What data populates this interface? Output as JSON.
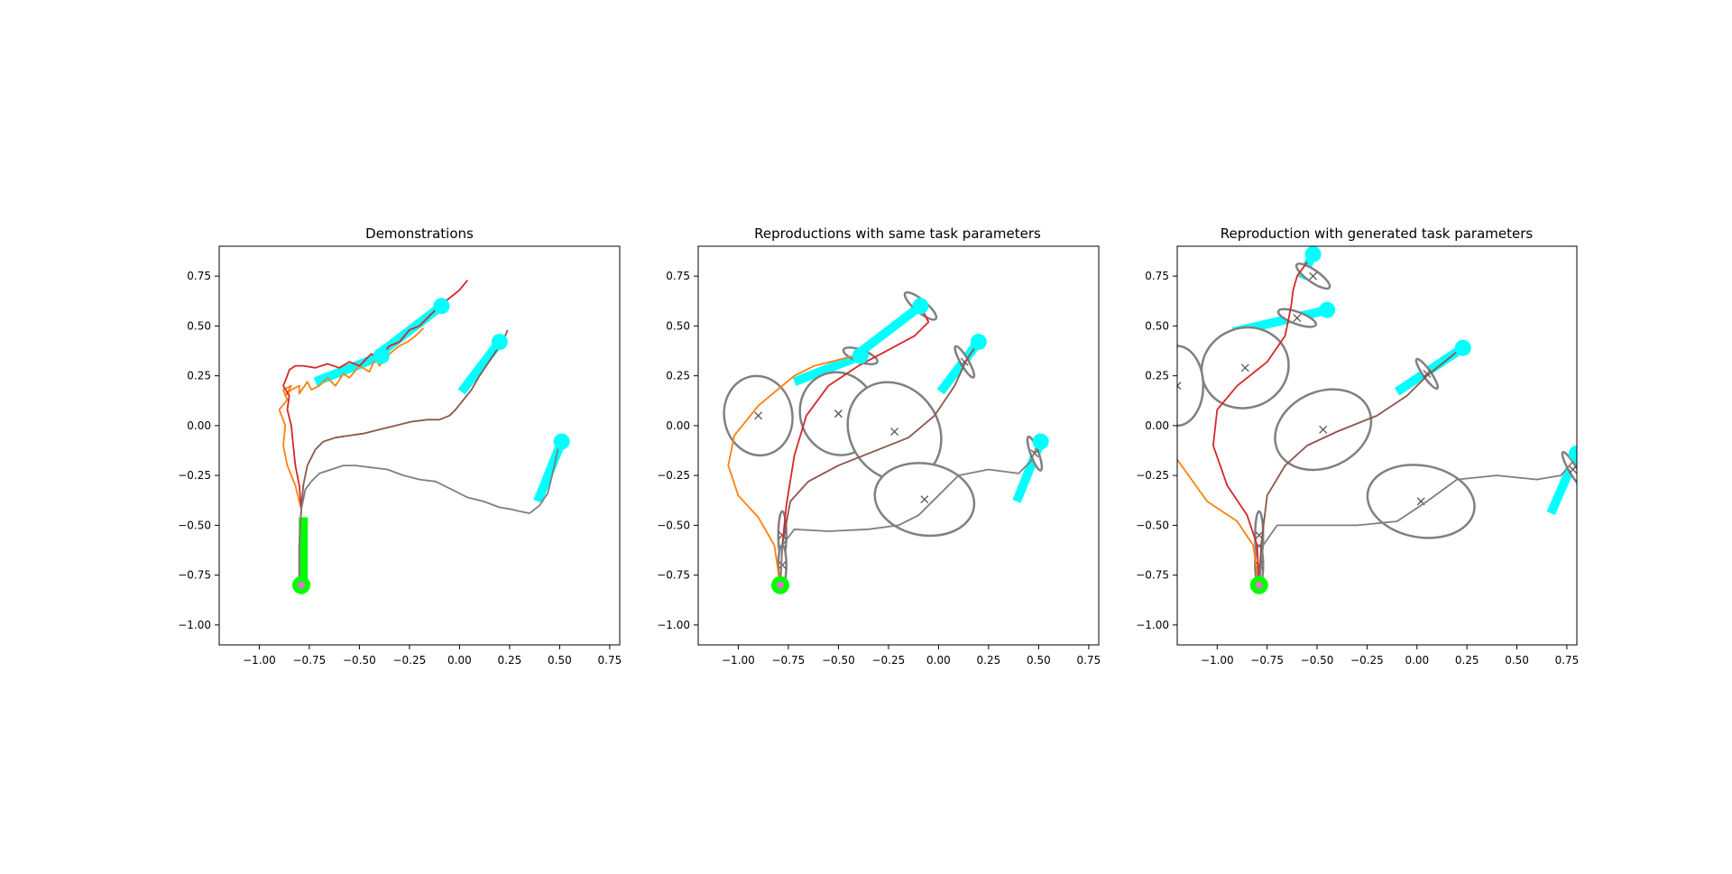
{
  "chart_data": [
    {
      "type": "line",
      "title": "Demonstrations",
      "xlabel": "",
      "ylabel": "",
      "xlim": [
        -1.2,
        0.8
      ],
      "ylim": [
        -1.1,
        0.9
      ],
      "x_ticks": [
        "−1.00",
        "−0.75",
        "−0.50",
        "−0.25",
        "0.00",
        "0.25",
        "0.50",
        "0.75"
      ],
      "y_ticks": [
        "−1.00",
        "−0.75",
        "−0.50",
        "−0.25",
        "0.00",
        "0.25",
        "0.50",
        "0.75"
      ],
      "start": {
        "x": -0.79,
        "y": -0.8,
        "color": "#00ff00"
      },
      "start_bar": {
        "x": -0.78,
        "y_from": -0.78,
        "y_to": -0.46,
        "color": "#00ff00"
      },
      "targets": [
        {
          "x": -0.39,
          "y": 0.35,
          "angle_x": -0.72,
          "angle_y": 0.22
        },
        {
          "x": -0.09,
          "y": 0.6,
          "angle_x": -0.39,
          "angle_y": 0.37
        },
        {
          "x": 0.2,
          "y": 0.42,
          "angle_x": 0.01,
          "angle_y": 0.17
        },
        {
          "x": 0.51,
          "y": -0.08,
          "angle_x": 0.39,
          "angle_y": -0.38
        }
      ],
      "series": [
        {
          "color": "#ff7f0e",
          "x": [
            -0.8,
            -0.8,
            -0.79,
            -0.82,
            -0.86,
            -0.88,
            -0.87,
            -0.9,
            -0.86,
            -0.88,
            -0.84,
            -0.87,
            -0.84,
            -0.8,
            -0.8,
            -0.76,
            -0.74,
            -0.7,
            -0.66,
            -0.62,
            -0.58,
            -0.55,
            -0.5,
            -0.45,
            -0.42,
            -0.4,
            -0.35,
            -0.3,
            -0.26,
            -0.22,
            -0.18
          ],
          "y": [
            -0.78,
            -0.6,
            -0.42,
            -0.3,
            -0.2,
            -0.1,
            0.0,
            0.08,
            0.13,
            0.18,
            0.2,
            0.15,
            0.18,
            0.2,
            0.16,
            0.22,
            0.18,
            0.2,
            0.24,
            0.2,
            0.26,
            0.24,
            0.3,
            0.27,
            0.34,
            0.3,
            0.36,
            0.4,
            0.42,
            0.45,
            0.49
          ]
        },
        {
          "color": "#d62728",
          "x": [
            -0.8,
            -0.8,
            -0.79,
            -0.8,
            -0.82,
            -0.83,
            -0.84,
            -0.86,
            -0.85,
            -0.88,
            -0.86,
            -0.85,
            -0.82,
            -0.78,
            -0.72,
            -0.66,
            -0.6,
            -0.55,
            -0.5,
            -0.44,
            -0.4,
            -0.35,
            -0.3,
            -0.25,
            -0.2,
            -0.15,
            -0.1,
            -0.05,
            0.0,
            0.04
          ],
          "y": [
            -0.78,
            -0.6,
            -0.42,
            -0.3,
            -0.2,
            -0.1,
            0.0,
            0.08,
            0.15,
            0.2,
            0.25,
            0.28,
            0.3,
            0.3,
            0.29,
            0.31,
            0.29,
            0.32,
            0.3,
            0.36,
            0.34,
            0.4,
            0.42,
            0.48,
            0.5,
            0.55,
            0.6,
            0.64,
            0.68,
            0.73
          ]
        },
        {
          "color": "#8c564b",
          "x": [
            -0.8,
            -0.8,
            -0.79,
            -0.78,
            -0.76,
            -0.72,
            -0.68,
            -0.62,
            -0.55,
            -0.48,
            -0.4,
            -0.32,
            -0.24,
            -0.16,
            -0.1,
            -0.05,
            -0.02,
            0.02,
            0.06,
            0.1,
            0.14,
            0.18,
            0.22,
            0.24
          ],
          "y": [
            -0.78,
            -0.6,
            -0.42,
            -0.3,
            -0.2,
            -0.12,
            -0.08,
            -0.06,
            -0.05,
            -0.04,
            -0.02,
            0.0,
            0.02,
            0.03,
            0.03,
            0.05,
            0.08,
            0.13,
            0.18,
            0.25,
            0.31,
            0.37,
            0.43,
            0.48
          ]
        },
        {
          "color": "#7f7f7f",
          "x": [
            -0.8,
            -0.8,
            -0.79,
            -0.77,
            -0.74,
            -0.7,
            -0.64,
            -0.58,
            -0.52,
            -0.44,
            -0.36,
            -0.28,
            -0.2,
            -0.12,
            -0.04,
            0.04,
            0.12,
            0.2,
            0.26,
            0.3,
            0.35,
            0.4,
            0.44,
            0.46,
            0.48,
            0.5
          ],
          "y": [
            -0.78,
            -0.6,
            -0.42,
            -0.32,
            -0.28,
            -0.24,
            -0.22,
            -0.2,
            -0.2,
            -0.21,
            -0.22,
            -0.25,
            -0.27,
            -0.28,
            -0.32,
            -0.36,
            -0.38,
            -0.41,
            -0.42,
            -0.43,
            -0.44,
            -0.4,
            -0.34,
            -0.26,
            -0.17,
            -0.08
          ]
        }
      ]
    },
    {
      "type": "line",
      "title": "Reproductions with same task parameters",
      "xlabel": "",
      "ylabel": "",
      "xlim": [
        -1.2,
        0.8
      ],
      "ylim": [
        -1.1,
        0.9
      ],
      "x_ticks": [
        "−1.00",
        "−0.75",
        "−0.50",
        "−0.25",
        "0.00",
        "0.25",
        "0.50",
        "0.75"
      ],
      "y_ticks": [
        "−1.00",
        "−0.75",
        "−0.50",
        "−0.25",
        "0.00",
        "0.25",
        "0.50",
        "0.75"
      ],
      "start": {
        "x": -0.79,
        "y": -0.8,
        "color": "#00ff00"
      },
      "targets": [
        {
          "x": -0.39,
          "y": 0.35,
          "angle_x": -0.72,
          "angle_y": 0.22
        },
        {
          "x": -0.09,
          "y": 0.6,
          "angle_x": -0.39,
          "angle_y": 0.37
        },
        {
          "x": 0.2,
          "y": 0.42,
          "angle_x": 0.01,
          "angle_y": 0.17
        },
        {
          "x": 0.51,
          "y": -0.08,
          "angle_x": 0.39,
          "angle_y": -0.38
        }
      ],
      "series": [
        {
          "color": "#ff7f0e",
          "x": [
            -0.79,
            -0.82,
            -0.9,
            -1.0,
            -1.05,
            -1.02,
            -0.9,
            -0.78,
            -0.72,
            -0.62,
            -0.5,
            -0.42,
            -0.39
          ],
          "y": [
            -0.8,
            -0.6,
            -0.46,
            -0.35,
            -0.2,
            -0.05,
            0.1,
            0.2,
            0.25,
            0.3,
            0.33,
            0.35,
            0.35
          ]
        },
        {
          "color": "#d62728",
          "x": [
            -0.79,
            -0.78,
            -0.76,
            -0.72,
            -0.66,
            -0.55,
            -0.4,
            -0.25,
            -0.12,
            -0.05,
            -0.09
          ],
          "y": [
            -0.8,
            -0.6,
            -0.4,
            -0.15,
            0.05,
            0.2,
            0.3,
            0.38,
            0.45,
            0.52,
            0.6
          ]
        },
        {
          "color": "#8c564b",
          "x": [
            -0.79,
            -0.78,
            -0.74,
            -0.65,
            -0.5,
            -0.3,
            -0.15,
            -0.02,
            0.08,
            0.14,
            0.2
          ],
          "y": [
            -0.8,
            -0.6,
            -0.38,
            -0.28,
            -0.2,
            -0.12,
            -0.06,
            0.05,
            0.2,
            0.33,
            0.42
          ]
        },
        {
          "color": "#7f7f7f",
          "x": [
            -0.79,
            -0.78,
            -0.72,
            -0.55,
            -0.35,
            -0.2,
            -0.1,
            0.0,
            0.1,
            0.25,
            0.4,
            0.46,
            0.5
          ],
          "y": [
            -0.8,
            -0.6,
            -0.52,
            -0.53,
            -0.52,
            -0.5,
            -0.45,
            -0.35,
            -0.25,
            -0.22,
            -0.24,
            -0.18,
            -0.08
          ]
        }
      ],
      "gaussians": [
        {
          "cx": -0.9,
          "cy": 0.05,
          "rx": 0.17,
          "ry": 0.2,
          "angle": 10
        },
        {
          "cx": -0.5,
          "cy": 0.06,
          "rx": 0.19,
          "ry": 0.21,
          "angle": 20
        },
        {
          "cx": -0.22,
          "cy": -0.03,
          "rx": 0.22,
          "ry": 0.26,
          "angle": 35
        },
        {
          "cx": -0.07,
          "cy": -0.37,
          "rx": 0.25,
          "ry": 0.18,
          "angle": -10
        },
        {
          "cx": -0.78,
          "cy": -0.55,
          "rx": 0.02,
          "ry": 0.12,
          "angle": 0
        },
        {
          "cx": -0.78,
          "cy": -0.7,
          "rx": 0.02,
          "ry": 0.1,
          "angle": 0
        },
        {
          "cx": -0.39,
          "cy": 0.35,
          "rx": 0.03,
          "ry": 0.09,
          "angle": 70
        },
        {
          "cx": -0.09,
          "cy": 0.6,
          "rx": 0.03,
          "ry": 0.1,
          "angle": 50
        },
        {
          "cx": 0.13,
          "cy": 0.32,
          "rx": 0.02,
          "ry": 0.09,
          "angle": 30
        },
        {
          "cx": 0.48,
          "cy": -0.14,
          "rx": 0.02,
          "ry": 0.09,
          "angle": 20
        }
      ]
    },
    {
      "type": "line",
      "title": "Reproduction with generated task parameters",
      "xlabel": "",
      "ylabel": "",
      "xlim": [
        -1.2,
        0.8
      ],
      "ylim": [
        -1.1,
        0.9
      ],
      "x_ticks": [
        "−1.00",
        "−0.75",
        "−0.50",
        "−0.25",
        "0.00",
        "0.25",
        "0.50",
        "0.75"
      ],
      "y_ticks": [
        "−1.00",
        "−0.75",
        "−0.50",
        "−0.25",
        "0.00",
        "0.25",
        "0.50",
        "0.75"
      ],
      "start": {
        "x": -0.79,
        "y": -0.8,
        "color": "#00ff00"
      },
      "targets": [
        {
          "x": -0.45,
          "y": 0.58,
          "angle_x": -0.92,
          "angle_y": 0.47
        },
        {
          "x": -0.52,
          "y": 0.86,
          "angle_x": -0.58,
          "angle_y": 0.74
        },
        {
          "x": 0.23,
          "y": 0.39,
          "angle_x": -0.1,
          "angle_y": 0.17
        },
        {
          "x": 0.8,
          "y": -0.14,
          "angle_x": 0.67,
          "angle_y": -0.44
        }
      ],
      "series": [
        {
          "color": "#ff7f0e",
          "x": [
            -0.79,
            -0.82,
            -0.9,
            -1.05,
            -1.2
          ],
          "y": [
            -0.8,
            -0.6,
            -0.48,
            -0.38,
            -0.17
          ]
        },
        {
          "color": "#d62728",
          "x": [
            -0.79,
            -0.8,
            -0.85,
            -0.95,
            -1.02,
            -1.0,
            -0.9,
            -0.75,
            -0.66,
            -0.63,
            -0.62,
            -0.6,
            -0.55
          ],
          "y": [
            -0.8,
            -0.6,
            -0.45,
            -0.3,
            -0.1,
            0.08,
            0.2,
            0.32,
            0.45,
            0.6,
            0.68,
            0.75,
            0.82
          ]
        },
        {
          "color": "#8c564b",
          "x": [
            -0.79,
            -0.78,
            -0.75,
            -0.66,
            -0.55,
            -0.4,
            -0.2,
            -0.05,
            0.05,
            0.15,
            0.2
          ],
          "y": [
            -0.8,
            -0.6,
            -0.35,
            -0.2,
            -0.1,
            -0.03,
            0.05,
            0.15,
            0.25,
            0.33,
            0.37
          ]
        },
        {
          "color": "#7f7f7f",
          "x": [
            -0.79,
            -0.77,
            -0.7,
            -0.5,
            -0.3,
            -0.1,
            0.05,
            0.2,
            0.4,
            0.6,
            0.72,
            0.78
          ],
          "y": [
            -0.8,
            -0.6,
            -0.5,
            -0.5,
            -0.5,
            -0.48,
            -0.38,
            -0.27,
            -0.25,
            -0.27,
            -0.25,
            -0.18
          ]
        }
      ],
      "gaussians": [
        {
          "cx": -0.86,
          "cy": 0.29,
          "rx": 0.22,
          "ry": 0.2,
          "angle": 20
        },
        {
          "cx": -1.2,
          "cy": 0.2,
          "rx": 0.13,
          "ry": 0.2,
          "angle": 0
        },
        {
          "cx": -0.47,
          "cy": -0.02,
          "rx": 0.25,
          "ry": 0.19,
          "angle": 25
        },
        {
          "cx": 0.02,
          "cy": -0.38,
          "rx": 0.27,
          "ry": 0.18,
          "angle": -10
        },
        {
          "cx": -0.79,
          "cy": -0.55,
          "rx": 0.02,
          "ry": 0.12,
          "angle": 0
        },
        {
          "cx": -0.79,
          "cy": -0.7,
          "rx": 0.02,
          "ry": 0.1,
          "angle": 0
        },
        {
          "cx": -0.52,
          "cy": 0.75,
          "rx": 0.03,
          "ry": 0.1,
          "angle": 55
        },
        {
          "cx": -0.6,
          "cy": 0.54,
          "rx": 0.03,
          "ry": 0.1,
          "angle": 70
        },
        {
          "cx": 0.05,
          "cy": 0.26,
          "rx": 0.02,
          "ry": 0.09,
          "angle": 35
        },
        {
          "cx": 0.78,
          "cy": -0.22,
          "rx": 0.02,
          "ry": 0.1,
          "angle": 30
        }
      ]
    }
  ]
}
